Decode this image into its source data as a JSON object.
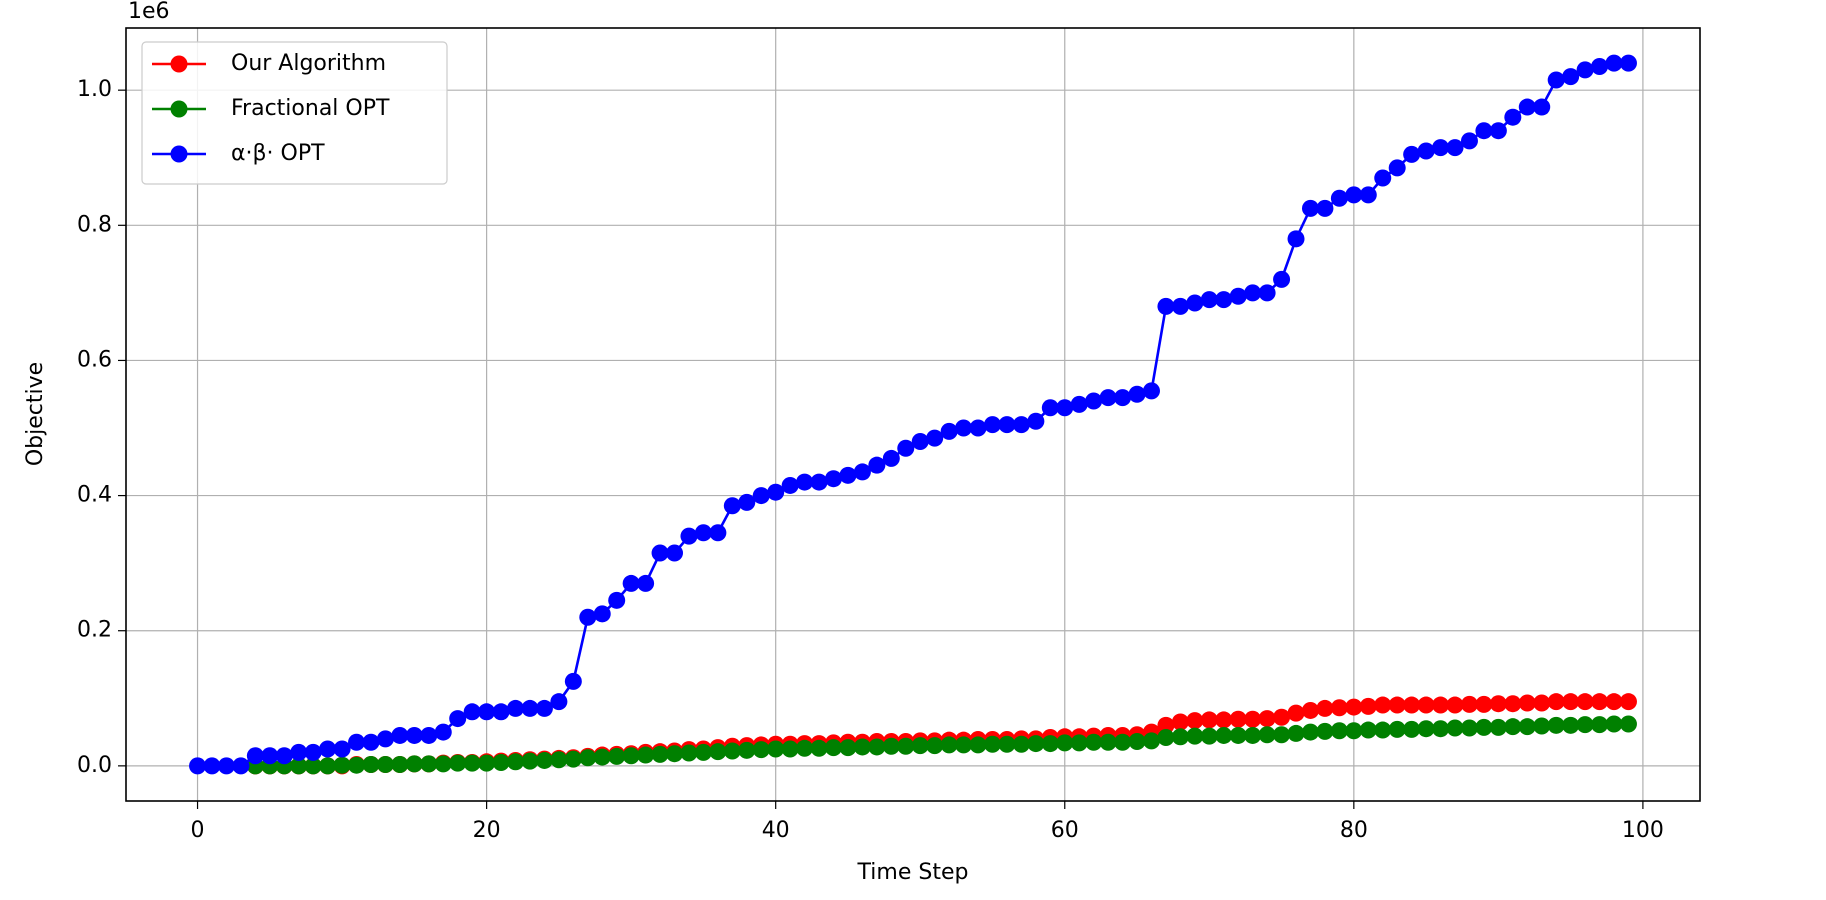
{
  "chart_data": {
    "type": "line",
    "xlabel": "Time Step",
    "ylabel": "Objective",
    "y_offset_label": "1e6",
    "x": [
      0,
      1,
      2,
      3,
      4,
      5,
      6,
      7,
      8,
      9,
      10,
      11,
      12,
      13,
      14,
      15,
      16,
      17,
      18,
      19,
      20,
      21,
      22,
      23,
      24,
      25,
      26,
      27,
      28,
      29,
      30,
      31,
      32,
      33,
      34,
      35,
      36,
      37,
      38,
      39,
      40,
      41,
      42,
      43,
      44,
      45,
      46,
      47,
      48,
      49,
      50,
      51,
      52,
      53,
      54,
      55,
      56,
      57,
      58,
      59,
      60,
      61,
      62,
      63,
      64,
      65,
      66,
      67,
      68,
      69,
      70,
      71,
      72,
      73,
      74,
      75,
      76,
      77,
      78,
      79,
      80,
      81,
      82,
      83,
      84,
      85,
      86,
      87,
      88,
      89,
      90,
      91,
      92,
      93,
      94,
      95,
      96,
      97,
      98,
      99
    ],
    "series": [
      {
        "name": "Our Algorithm",
        "color": "#ff0000",
        "values": [
          null,
          null,
          null,
          null,
          0,
          0,
          0,
          0,
          0,
          0,
          0,
          0.002,
          0.002,
          0.002,
          0.002,
          0.003,
          0.003,
          0.004,
          0.005,
          0.005,
          0.006,
          0.007,
          0.008,
          0.009,
          0.01,
          0.011,
          0.012,
          0.014,
          0.016,
          0.017,
          0.018,
          0.02,
          0.021,
          0.022,
          0.024,
          0.025,
          0.027,
          0.029,
          0.03,
          0.031,
          0.032,
          0.032,
          0.033,
          0.033,
          0.034,
          0.035,
          0.035,
          0.036,
          0.036,
          0.036,
          0.037,
          0.037,
          0.038,
          0.038,
          0.039,
          0.039,
          0.039,
          0.04,
          0.04,
          0.042,
          0.043,
          0.043,
          0.044,
          0.045,
          0.045,
          0.046,
          0.05,
          0.06,
          0.065,
          0.067,
          0.068,
          0.068,
          0.069,
          0.069,
          0.07,
          0.072,
          0.078,
          0.082,
          0.085,
          0.086,
          0.087,
          0.088,
          0.09,
          0.09,
          0.09,
          0.09,
          0.09,
          0.09,
          0.091,
          0.091,
          0.092,
          0.092,
          0.093,
          0.093,
          0.095,
          0.095,
          0.095,
          0.095,
          0.095,
          0.095
        ]
      },
      {
        "name": "Fractional OPT",
        "color": "#008000",
        "values": [
          null,
          null,
          null,
          null,
          0,
          0,
          0,
          0,
          0,
          0,
          0.001,
          0.001,
          0.002,
          0.002,
          0.002,
          0.003,
          0.003,
          0.003,
          0.004,
          0.004,
          0.004,
          0.005,
          0.006,
          0.007,
          0.008,
          0.009,
          0.01,
          0.012,
          0.013,
          0.014,
          0.015,
          0.016,
          0.017,
          0.018,
          0.019,
          0.02,
          0.021,
          0.022,
          0.023,
          0.024,
          0.025,
          0.025,
          0.026,
          0.026,
          0.027,
          0.027,
          0.028,
          0.028,
          0.029,
          0.029,
          0.03,
          0.03,
          0.031,
          0.031,
          0.031,
          0.032,
          0.032,
          0.032,
          0.033,
          0.033,
          0.034,
          0.034,
          0.035,
          0.035,
          0.035,
          0.036,
          0.037,
          0.042,
          0.043,
          0.044,
          0.044,
          0.045,
          0.045,
          0.045,
          0.046,
          0.046,
          0.048,
          0.05,
          0.051,
          0.052,
          0.052,
          0.053,
          0.053,
          0.054,
          0.054,
          0.055,
          0.055,
          0.056,
          0.056,
          0.057,
          0.057,
          0.058,
          0.058,
          0.059,
          0.06,
          0.06,
          0.061,
          0.061,
          0.062,
          0.062
        ]
      },
      {
        "name": "α·β· OPT",
        "color": "#0000ff",
        "values": [
          0,
          0,
          0,
          0,
          0.015,
          0.015,
          0.015,
          0.02,
          0.02,
          0.025,
          0.025,
          0.035,
          0.035,
          0.04,
          0.045,
          0.045,
          0.045,
          0.05,
          0.07,
          0.08,
          0.08,
          0.08,
          0.085,
          0.085,
          0.085,
          0.095,
          0.125,
          0.22,
          0.225,
          0.245,
          0.27,
          0.27,
          0.315,
          0.315,
          0.34,
          0.345,
          0.345,
          0.385,
          0.39,
          0.4,
          0.405,
          0.415,
          0.42,
          0.42,
          0.425,
          0.43,
          0.435,
          0.445,
          0.455,
          0.47,
          0.48,
          0.485,
          0.495,
          0.5,
          0.5,
          0.505,
          0.505,
          0.505,
          0.51,
          0.53,
          0.53,
          0.535,
          0.54,
          0.545,
          0.545,
          0.55,
          0.555,
          0.68,
          0.68,
          0.685,
          0.69,
          0.69,
          0.695,
          0.7,
          0.7,
          0.72,
          0.78,
          0.825,
          0.825,
          0.84,
          0.845,
          0.845,
          0.87,
          0.885,
          0.905,
          0.91,
          0.915,
          0.915,
          0.925,
          0.94,
          0.94,
          0.96,
          0.975,
          0.975,
          1.015,
          1.02,
          1.03,
          1.035,
          1.04,
          1.04
        ]
      }
    ],
    "xlim": [
      -4.95,
      103.95
    ],
    "xticks": [
      0,
      20,
      40,
      60,
      80,
      100
    ],
    "ylim": [
      -0.052,
      1.092
    ],
    "yticks": [
      {
        "value": 0,
        "label": "0.0"
      },
      {
        "value": 0.2,
        "label": "0.2"
      },
      {
        "value": 0.4,
        "label": "0.4"
      },
      {
        "value": 0.6,
        "label": "0.6"
      },
      {
        "value": 0.8,
        "label": "0.8"
      },
      {
        "value": 1,
        "label": "1.0"
      }
    ],
    "grid": true,
    "legend": "upper left",
    "markers": true
  }
}
